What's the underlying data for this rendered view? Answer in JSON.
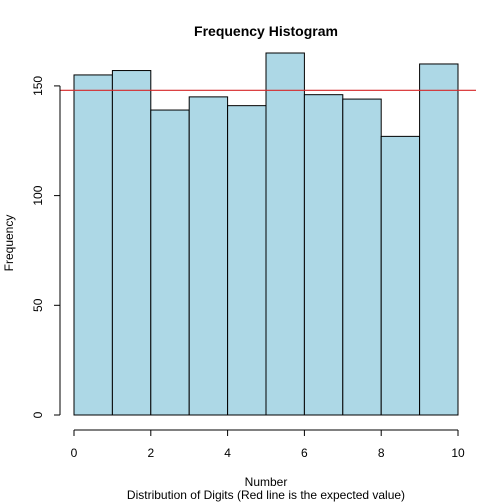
{
  "chart_data": {
    "type": "bar",
    "title": "Frequency Histogram",
    "xlabel": "Number",
    "xlabel_sub": "Distribution of Digits (Red line is the expected value)",
    "ylabel": "Frequency",
    "bins": [
      [
        0,
        1
      ],
      [
        1,
        2
      ],
      [
        2,
        3
      ],
      [
        3,
        4
      ],
      [
        4,
        5
      ],
      [
        5,
        6
      ],
      [
        6,
        7
      ],
      [
        7,
        8
      ],
      [
        8,
        9
      ],
      [
        9,
        10
      ]
    ],
    "values": [
      155,
      157,
      139,
      145,
      141,
      165,
      146,
      144,
      127,
      160
    ],
    "reference_line": {
      "y": 148,
      "color": "#d62728"
    },
    "xlim": [
      0,
      10
    ],
    "ylim": [
      0,
      165
    ],
    "xticks": [
      0,
      2,
      4,
      6,
      8,
      10
    ],
    "yticks": [
      0,
      50,
      100,
      150
    ],
    "bar_color": "#add8e6",
    "grid": false
  }
}
